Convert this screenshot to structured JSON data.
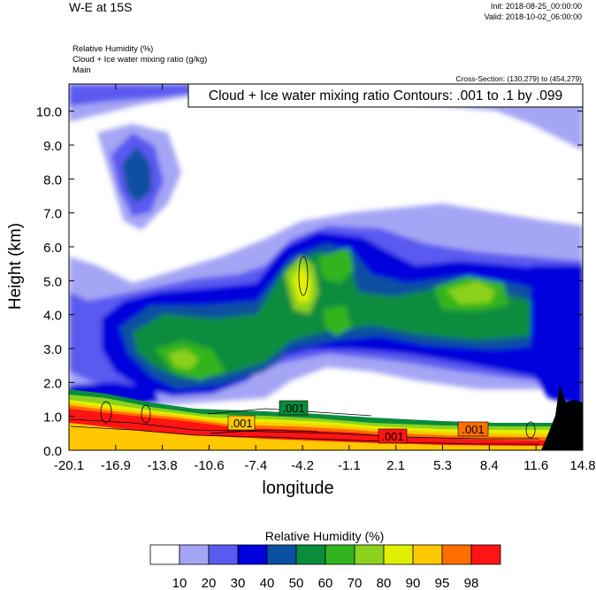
{
  "header": {
    "title": "W-E at 15S",
    "init": "Init: 2018-08-25_00:00:00",
    "valid": "Valid: 2018-10-02_06:00:00",
    "meta_lines": [
      "Relative Humidity   (%)",
      "Cloud + Ice water mixing ratio   (g/kg)",
      "Main"
    ],
    "cross_section": "Cross-Section: (130,279) to (454,279)"
  },
  "chart_data": {
    "type": "heatmap",
    "contour_title": "Cloud + Ice water mixing ratio Contours: .001 to .1 by .099",
    "contour_labels": [
      ".001",
      ".001",
      ".001",
      ".001"
    ],
    "xlabel": "longitude",
    "ylabel": "Height (km)",
    "xlim": [
      -20.1,
      14.8
    ],
    "ylim": [
      0,
      10.8
    ],
    "xticks": [
      "-20.1",
      "-16.9",
      "-13.8",
      "-10.6",
      "-7.4",
      "-4.2",
      "-1.1",
      "2.1",
      "5.3",
      "8.4",
      "11.6",
      "14.8"
    ],
    "yticks": [
      "0.0",
      "1.0",
      "2.0",
      "3.0",
      "4.0",
      "5.0",
      "6.0",
      "7.0",
      "8.0",
      "9.0",
      "10.0"
    ],
    "colorbar": {
      "title": "Relative Humidity  (%)",
      "levels": [
        "10",
        "20",
        "30",
        "40",
        "50",
        "60",
        "70",
        "80",
        "90",
        "95",
        "98"
      ],
      "colors": [
        "#ffffff",
        "#a5a5f5",
        "#5a5af0",
        "#0000dc",
        "#0a50a0",
        "#0a8c3c",
        "#32b41e",
        "#8cd21e",
        "#e1f000",
        "#ffc800",
        "#ff6e00",
        "#ff1414"
      ]
    }
  }
}
